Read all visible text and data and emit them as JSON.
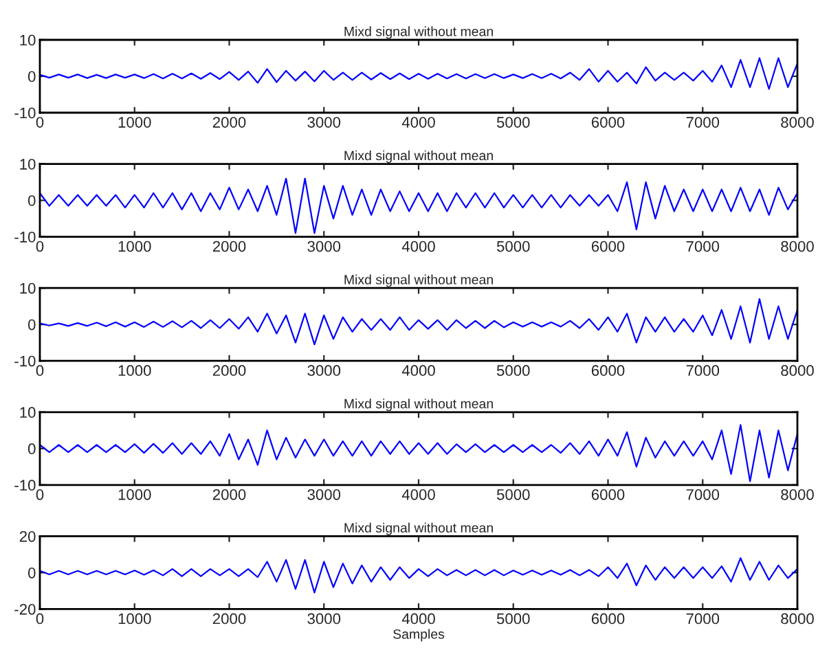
{
  "chart_data": [
    {
      "type": "line",
      "title": "Mixd signal without mean",
      "xlim": [
        0,
        8000
      ],
      "ylim": [
        -10,
        10
      ],
      "xticks": [
        0,
        1000,
        2000,
        3000,
        4000,
        5000,
        6000,
        7000,
        8000
      ],
      "yticks": [
        -10,
        0,
        10
      ],
      "grid": false,
      "x": [
        0,
        100,
        200,
        300,
        400,
        500,
        600,
        700,
        800,
        900,
        1000,
        1100,
        1200,
        1300,
        1400,
        1500,
        1600,
        1700,
        1800,
        1900,
        2000,
        2100,
        2200,
        2300,
        2400,
        2500,
        2600,
        2700,
        2800,
        2900,
        3000,
        3100,
        3200,
        3300,
        3400,
        3500,
        3600,
        3700,
        3800,
        3900,
        4000,
        4100,
        4200,
        4300,
        4400,
        4500,
        4600,
        4700,
        4800,
        4900,
        5000,
        5100,
        5200,
        5300,
        5400,
        5500,
        5600,
        5700,
        5800,
        5900,
        6000,
        6100,
        6200,
        6300,
        6400,
        6500,
        6600,
        6700,
        6800,
        6900,
        7000,
        7100,
        7200,
        7300,
        7400,
        7500,
        7600,
        7700,
        7800,
        7900,
        8000
      ],
      "series": [
        {
          "color": "#0000ff",
          "values": [
            0.4,
            -0.4,
            0.5,
            -0.4,
            0.5,
            -0.5,
            0.4,
            -0.5,
            0.5,
            -0.4,
            0.5,
            -0.5,
            0.6,
            -0.6,
            0.7,
            -0.6,
            0.8,
            -0.7,
            0.9,
            -0.8,
            1.2,
            -1,
            1.3,
            -1.8,
            2,
            -1.6,
            1.5,
            -1.2,
            1.3,
            -1.4,
            1.5,
            -1,
            1,
            -1,
            1,
            -0.9,
            0.9,
            -0.8,
            0.8,
            -0.8,
            0.7,
            -0.7,
            0.7,
            -0.6,
            0.6,
            -0.6,
            0.6,
            -0.5,
            0.6,
            -0.5,
            0.5,
            -0.5,
            0.6,
            -0.5,
            0.7,
            -0.6,
            1,
            -1,
            2,
            -1.5,
            1.5,
            -1.5,
            1,
            -2,
            2.5,
            -1.2,
            1,
            -1,
            1,
            -1.2,
            1.5,
            -1.5,
            3,
            -3,
            4.5,
            -3,
            5,
            -3.5,
            5,
            -3,
            3.5
          ]
        }
      ]
    },
    {
      "type": "line",
      "title": "Mixd signal without mean",
      "xlim": [
        0,
        8000
      ],
      "ylim": [
        -10,
        10
      ],
      "xticks": [
        0,
        1000,
        2000,
        3000,
        4000,
        5000,
        6000,
        7000,
        8000
      ],
      "yticks": [
        -10,
        0,
        10
      ],
      "grid": false,
      "x": [
        0,
        100,
        200,
        300,
        400,
        500,
        600,
        700,
        800,
        900,
        1000,
        1100,
        1200,
        1300,
        1400,
        1500,
        1600,
        1700,
        1800,
        1900,
        2000,
        2100,
        2200,
        2300,
        2400,
        2500,
        2600,
        2700,
        2800,
        2900,
        3000,
        3100,
        3200,
        3300,
        3400,
        3500,
        3600,
        3700,
        3800,
        3900,
        4000,
        4100,
        4200,
        4300,
        4400,
        4500,
        4600,
        4700,
        4800,
        4900,
        5000,
        5100,
        5200,
        5300,
        5400,
        5500,
        5600,
        5700,
        5800,
        5900,
        6000,
        6100,
        6200,
        6300,
        6400,
        6500,
        6600,
        6700,
        6800,
        6900,
        7000,
        7100,
        7200,
        7300,
        7400,
        7500,
        7600,
        7700,
        7800,
        7900,
        8000
      ],
      "series": [
        {
          "color": "#0000ff",
          "values": [
            2,
            -1.5,
            1.5,
            -1.5,
            1.5,
            -1.5,
            1.5,
            -1.5,
            1.5,
            -2,
            1.5,
            -2,
            2,
            -2,
            2,
            -2.5,
            2,
            -3,
            2,
            -2.5,
            3.5,
            -2.5,
            3,
            -3,
            4,
            -4,
            6,
            -9,
            6,
            -9,
            4,
            -5,
            4,
            -4,
            3,
            -4,
            3,
            -3,
            2.5,
            -3,
            2,
            -3,
            2,
            -3,
            2,
            -2,
            2,
            -2,
            2,
            -2,
            1.5,
            -2,
            1.5,
            -2,
            1.5,
            -2,
            1.5,
            -1.5,
            1.5,
            -1.5,
            1.5,
            -3,
            5,
            -8,
            5,
            -5,
            4,
            -3,
            3,
            -3,
            3,
            -3,
            3,
            -3,
            3.5,
            -3,
            3,
            -4,
            3.5,
            -2.5,
            2
          ]
        }
      ]
    },
    {
      "type": "line",
      "title": "Mixd signal without mean",
      "xlim": [
        0,
        8000
      ],
      "ylim": [
        -10,
        10
      ],
      "xticks": [
        0,
        1000,
        2000,
        3000,
        4000,
        5000,
        6000,
        7000,
        8000
      ],
      "yticks": [
        -10,
        0,
        10
      ],
      "grid": false,
      "x": [
        0,
        100,
        200,
        300,
        400,
        500,
        600,
        700,
        800,
        900,
        1000,
        1100,
        1200,
        1300,
        1400,
        1500,
        1600,
        1700,
        1800,
        1900,
        2000,
        2100,
        2200,
        2300,
        2400,
        2500,
        2600,
        2700,
        2800,
        2900,
        3000,
        3100,
        3200,
        3300,
        3400,
        3500,
        3600,
        3700,
        3800,
        3900,
        4000,
        4100,
        4200,
        4300,
        4400,
        4500,
        4600,
        4700,
        4800,
        4900,
        5000,
        5100,
        5200,
        5300,
        5400,
        5500,
        5600,
        5700,
        5800,
        5900,
        6000,
        6100,
        6200,
        6300,
        6400,
        6500,
        6600,
        6700,
        6800,
        6900,
        7000,
        7100,
        7200,
        7300,
        7400,
        7500,
        7600,
        7700,
        7800,
        7900,
        8000
      ],
      "series": [
        {
          "color": "#0000ff",
          "values": [
            0.3,
            -0.3,
            0.3,
            -0.4,
            0.4,
            -0.4,
            0.5,
            -0.5,
            0.6,
            -0.6,
            0.6,
            -0.7,
            0.8,
            -0.7,
            0.9,
            -0.8,
            1,
            -1,
            1.2,
            -1,
            1.5,
            -1.2,
            2,
            -2,
            3,
            -2.5,
            2.5,
            -5,
            3,
            -5.5,
            2.5,
            -4,
            2,
            -2,
            1.5,
            -1.5,
            1.5,
            -1.5,
            2,
            -1.5,
            1.2,
            -1.2,
            1.2,
            -1.5,
            1.2,
            -1,
            1,
            -1,
            1,
            -0.8,
            0.6,
            -0.6,
            0.6,
            -0.6,
            0.6,
            -0.6,
            1,
            -1,
            1.5,
            -1.5,
            2,
            -2,
            3,
            -5,
            2,
            -2,
            2,
            -2,
            1.5,
            -2,
            2.5,
            -3,
            4,
            -4,
            5,
            -5,
            7,
            -4,
            5,
            -4,
            4
          ]
        }
      ]
    },
    {
      "type": "line",
      "title": "Mixd signal without mean",
      "xlim": [
        0,
        8000
      ],
      "ylim": [
        -10,
        10
      ],
      "xticks": [
        0,
        1000,
        2000,
        3000,
        4000,
        5000,
        6000,
        7000,
        8000
      ],
      "yticks": [
        -10,
        0,
        10
      ],
      "grid": false,
      "x": [
        0,
        100,
        200,
        300,
        400,
        500,
        600,
        700,
        800,
        900,
        1000,
        1100,
        1200,
        1300,
        1400,
        1500,
        1600,
        1700,
        1800,
        1900,
        2000,
        2100,
        2200,
        2300,
        2400,
        2500,
        2600,
        2700,
        2800,
        2900,
        3000,
        3100,
        3200,
        3300,
        3400,
        3500,
        3600,
        3700,
        3800,
        3900,
        4000,
        4100,
        4200,
        4300,
        4400,
        4500,
        4600,
        4700,
        4800,
        4900,
        5000,
        5100,
        5200,
        5300,
        5400,
        5500,
        5600,
        5700,
        5800,
        5900,
        6000,
        6100,
        6200,
        6300,
        6400,
        6500,
        6600,
        6700,
        6800,
        6900,
        7000,
        7100,
        7200,
        7300,
        7400,
        7500,
        7600,
        7700,
        7800,
        7900,
        8000
      ],
      "series": [
        {
          "color": "#0000ff",
          "values": [
            1,
            -1,
            1,
            -1,
            1,
            -1,
            1,
            -1,
            1,
            -1,
            1.2,
            -1.2,
            1.3,
            -1.2,
            1.5,
            -1.5,
            1.5,
            -1.5,
            2,
            -2,
            4,
            -3,
            2.5,
            -4.5,
            5,
            -3,
            3,
            -2.5,
            2.5,
            -2,
            2.5,
            -2,
            2,
            -2,
            2,
            -2,
            2,
            -1.5,
            2,
            -1.5,
            1.5,
            -1.5,
            1.5,
            -1.5,
            1.2,
            -1,
            1.2,
            -1,
            1,
            -1,
            1,
            -1,
            1,
            -1,
            1,
            -1.2,
            1.5,
            -1.5,
            2,
            -2,
            2.5,
            -2,
            4.5,
            -5,
            3,
            -2.5,
            2,
            -2,
            2,
            -2,
            2,
            -3,
            5,
            -7,
            6.5,
            -9,
            5,
            -8,
            5,
            -6,
            4
          ]
        }
      ]
    },
    {
      "type": "line",
      "title": "Mixd signal without mean",
      "xlabel": "Samples",
      "xlim": [
        0,
        8000
      ],
      "ylim": [
        -20,
        20
      ],
      "xticks": [
        0,
        1000,
        2000,
        3000,
        4000,
        5000,
        6000,
        7000,
        8000
      ],
      "yticks": [
        -20,
        0,
        20
      ],
      "grid": false,
      "x": [
        0,
        100,
        200,
        300,
        400,
        500,
        600,
        700,
        800,
        900,
        1000,
        1100,
        1200,
        1300,
        1400,
        1500,
        1600,
        1700,
        1800,
        1900,
        2000,
        2100,
        2200,
        2300,
        2400,
        2500,
        2600,
        2700,
        2800,
        2900,
        3000,
        3100,
        3200,
        3300,
        3400,
        3500,
        3600,
        3700,
        3800,
        3900,
        4000,
        4100,
        4200,
        4300,
        4400,
        4500,
        4600,
        4700,
        4800,
        4900,
        5000,
        5100,
        5200,
        5300,
        5400,
        5500,
        5600,
        5700,
        5800,
        5900,
        6000,
        6100,
        6200,
        6300,
        6400,
        6500,
        6600,
        6700,
        6800,
        6900,
        7000,
        7100,
        7200,
        7300,
        7400,
        7500,
        7600,
        7700,
        7800,
        7900,
        8000
      ],
      "series": [
        {
          "color": "#0000ff",
          "values": [
            1,
            -1,
            1,
            -1,
            1,
            -1,
            1,
            -1,
            1,
            -1,
            1.2,
            -1.2,
            1.3,
            -1.5,
            2,
            -2,
            2,
            -2,
            2,
            -1.5,
            2,
            -2,
            2,
            -2.5,
            6,
            -5,
            7,
            -9,
            7,
            -11,
            6,
            -8,
            5,
            -6,
            4,
            -5,
            3,
            -4,
            3,
            -3,
            2,
            -2,
            2,
            -1.5,
            1.5,
            -1.5,
            1.5,
            -1.5,
            1.5,
            -1.5,
            1.2,
            -1.2,
            1.2,
            -1.2,
            1.2,
            -1.2,
            1.5,
            -1.5,
            1.5,
            -2,
            3,
            -3,
            5,
            -7,
            4,
            -4,
            3,
            -3,
            3,
            -3,
            3,
            -3,
            3.5,
            -5,
            8,
            -4,
            6,
            -4,
            4,
            -3,
            2
          ]
        }
      ]
    }
  ]
}
